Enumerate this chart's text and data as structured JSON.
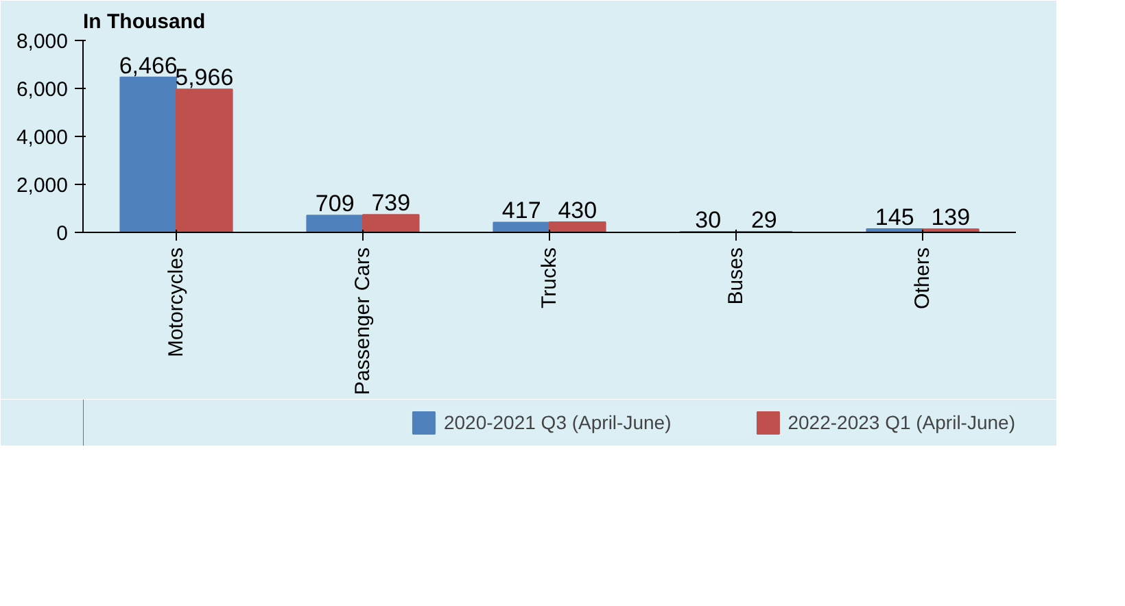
{
  "chart_data": {
    "type": "bar",
    "ylabel": "In Thousand",
    "categories": [
      "Motorcycles",
      "Passenger Cars",
      "Trucks",
      "Buses",
      "Others"
    ],
    "series": [
      {
        "name": "2020-2021 Q3 (April-June)",
        "color": "#4f81bd",
        "values": [
          6466,
          709,
          417,
          30,
          145
        ],
        "value_labels": [
          "6,466",
          "709",
          "417",
          "30",
          "145"
        ]
      },
      {
        "name": "2022-2023 Q1 (April-June)",
        "color": "#c0504d",
        "values": [
          5966,
          739,
          430,
          29,
          139
        ],
        "value_labels": [
          "5,966",
          "739",
          "430",
          "29",
          "139"
        ]
      }
    ],
    "ylim": [
      0,
      8000
    ],
    "yticks": [
      {
        "value": 0,
        "label": "0"
      },
      {
        "value": 2000,
        "label": "2,000"
      },
      {
        "value": 4000,
        "label": "4,000"
      },
      {
        "value": 6000,
        "label": "6,000"
      },
      {
        "value": 8000,
        "label": "8,000"
      }
    ],
    "grid": false,
    "legend": "bottom"
  }
}
